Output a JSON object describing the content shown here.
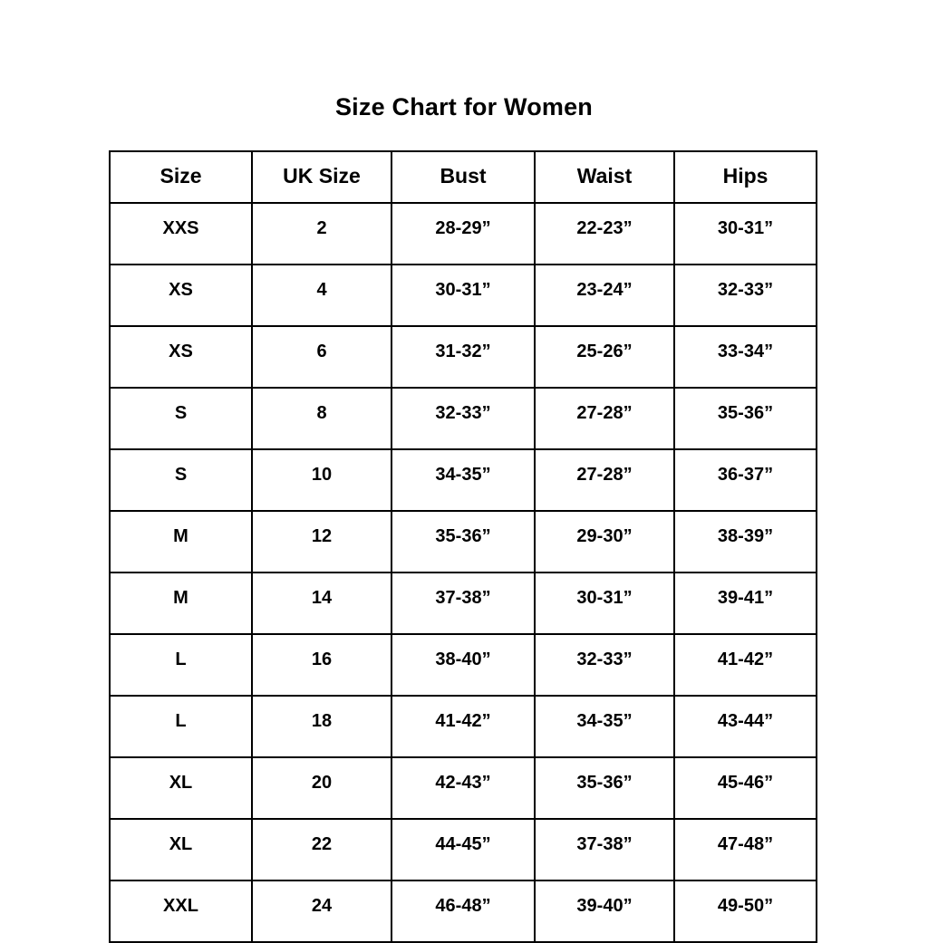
{
  "page": {
    "title": "Size Chart for Women"
  },
  "chart_data": {
    "type": "table",
    "title": "Size Chart for Women",
    "columns": [
      "Size",
      "UK Size",
      "Bust",
      "Waist",
      "Hips"
    ],
    "rows": [
      [
        "XXS",
        "2",
        "28-29”",
        "22-23”",
        "30-31”"
      ],
      [
        "XS",
        "4",
        "30-31”",
        "23-24”",
        "32-33”"
      ],
      [
        "XS",
        "6",
        "31-32”",
        "25-26”",
        "33-34”"
      ],
      [
        "S",
        "8",
        "32-33”",
        "27-28”",
        "35-36”"
      ],
      [
        "S",
        "10",
        "34-35”",
        "27-28”",
        "36-37”"
      ],
      [
        "M",
        "12",
        "35-36”",
        "29-30”",
        "38-39”"
      ],
      [
        "M",
        "14",
        "37-38”",
        "30-31”",
        "39-41”"
      ],
      [
        "L",
        "16",
        "38-40”",
        "32-33”",
        "41-42”"
      ],
      [
        "L",
        "18",
        "41-42”",
        "34-35”",
        "43-44”"
      ],
      [
        "XL",
        "20",
        "42-43”",
        "35-36”",
        "45-46”"
      ],
      [
        "XL",
        "22",
        "44-45”",
        "37-38”",
        "47-48”"
      ],
      [
        "XXL",
        "24",
        "46-48”",
        "39-40”",
        "49-50”"
      ]
    ],
    "text_color": "#000000",
    "border_color": "#000000",
    "background_color": "#ffffff",
    "layout": {
      "header_row": true,
      "grid": "all-borders"
    }
  }
}
